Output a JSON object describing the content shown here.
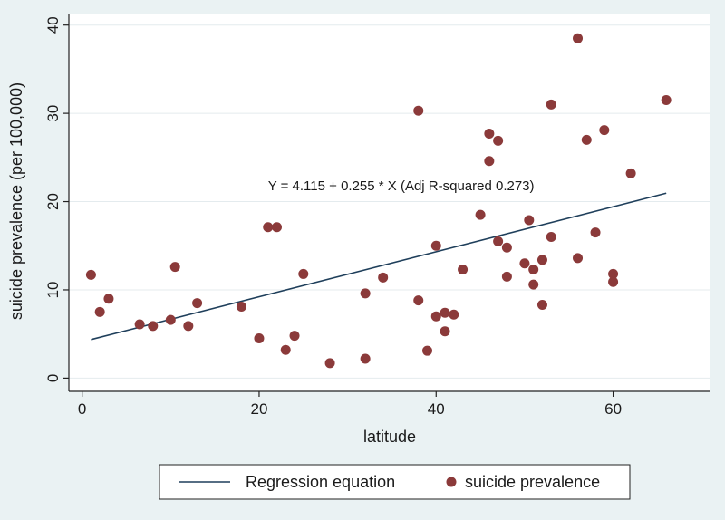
{
  "chart_data": {
    "type": "scatter",
    "title": "",
    "xlabel": "latitude",
    "ylabel": "suicide prevalence (per 100,000)",
    "xlim": [
      -1.5,
      71
    ],
    "ylim": [
      -1.5,
      41.2
    ],
    "xticks": [
      0,
      20,
      40,
      60
    ],
    "yticks": [
      0,
      10,
      20,
      30,
      40
    ],
    "grid": "horizontal",
    "legend_position": "bottom",
    "series": [
      {
        "name": "suicide prevalence",
        "kind": "scatter",
        "color": "#8b3a3a",
        "points": [
          [
            1,
            11.7
          ],
          [
            2,
            7.5
          ],
          [
            3,
            9.0
          ],
          [
            6.5,
            6.1
          ],
          [
            8,
            5.9
          ],
          [
            10,
            6.6
          ],
          [
            10.5,
            12.6
          ],
          [
            12,
            5.9
          ],
          [
            13,
            8.5
          ],
          [
            18,
            8.1
          ],
          [
            20,
            4.5
          ],
          [
            21,
            17.1
          ],
          [
            22,
            17.1
          ],
          [
            23,
            3.2
          ],
          [
            24,
            4.8
          ],
          [
            25,
            11.8
          ],
          [
            28,
            1.7
          ],
          [
            32,
            2.2
          ],
          [
            32,
            9.6
          ],
          [
            34,
            11.4
          ],
          [
            38,
            30.3
          ],
          [
            38,
            8.8
          ],
          [
            39,
            3.1
          ],
          [
            40,
            15.0
          ],
          [
            40,
            7.0
          ],
          [
            41,
            7.4
          ],
          [
            41,
            5.3
          ],
          [
            42,
            7.2
          ],
          [
            43,
            12.3
          ],
          [
            45,
            18.5
          ],
          [
            46,
            27.7
          ],
          [
            46,
            24.6
          ],
          [
            47,
            26.9
          ],
          [
            47,
            15.5
          ],
          [
            48,
            14.8
          ],
          [
            48,
            11.5
          ],
          [
            50,
            13.0
          ],
          [
            50.5,
            17.9
          ],
          [
            51,
            10.6
          ],
          [
            51,
            12.3
          ],
          [
            52,
            13.4
          ],
          [
            52,
            8.3
          ],
          [
            53,
            31.0
          ],
          [
            53,
            16.0
          ],
          [
            56,
            38.5
          ],
          [
            56,
            13.6
          ],
          [
            57,
            27.0
          ],
          [
            58,
            16.5
          ],
          [
            59,
            28.1
          ],
          [
            60,
            11.8
          ],
          [
            60,
            10.9
          ],
          [
            62,
            23.2
          ],
          [
            66,
            31.5
          ]
        ]
      },
      {
        "name": "Regression equation",
        "kind": "line",
        "color": "#1f3f5b",
        "x": [
          1,
          66
        ],
        "y": [
          4.37,
          20.95
        ]
      }
    ],
    "annotations": [
      {
        "text": "Y = 4.115 + 0.255 * X (Adj R-squared 0.273)",
        "x": 21,
        "y": 21.3
      }
    ],
    "legend": [
      "Regression equation",
      "suicide prevalence"
    ]
  }
}
